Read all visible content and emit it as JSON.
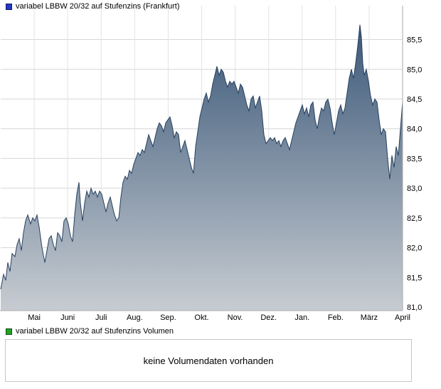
{
  "price_chart": {
    "legend_label": "variabel LBBW 20/32 auf Stufenzins (Frankfurt)",
    "marker_color": "#2337c8"
  },
  "volume_section": {
    "legend_label": "variabel LBBW 20/32 auf Stufenzins Volumen",
    "marker_color": "#23a123",
    "message": "keine Volumendaten vorhanden"
  },
  "chart_data": {
    "type": "area",
    "title": "variabel LBBW 20/32 auf Stufenzins (Frankfurt)",
    "xlabel": "",
    "ylabel": "",
    "grid": true,
    "legend_position": "top-left",
    "x_tick_labels": [
      "Mai",
      "Juni",
      "Juli",
      "Aug.",
      "Sep.",
      "Okt.",
      "Nov.",
      "Dez.",
      "Jan.",
      "Feb.",
      "März",
      "April"
    ],
    "y_ticks": [
      {
        "value": 81.0,
        "label": "81,0"
      },
      {
        "value": 81.5,
        "label": "81,5"
      },
      {
        "value": 82.0,
        "label": "82,0"
      },
      {
        "value": 82.5,
        "label": "82,5"
      },
      {
        "value": 83.0,
        "label": "83,0"
      },
      {
        "value": 83.5,
        "label": "83,5"
      },
      {
        "value": 84.0,
        "label": "84,0"
      },
      {
        "value": 84.5,
        "label": "84,5"
      },
      {
        "value": 85.0,
        "label": "85,0"
      },
      {
        "value": 85.5,
        "label": "85,5"
      }
    ],
    "y_range": [
      80.94,
      86.07
    ],
    "x_domain": [
      0,
      565
    ],
    "colors": {
      "line": "#27405e",
      "fill_top": "#3b5878",
      "fill_bottom": "#c7ccd2",
      "grid": "#d6d6d6",
      "grid_vertical": "#e3e3e3",
      "axis": "#aaaaaa"
    },
    "series": [
      {
        "name": "variabel LBBW 20/32 auf Stufenzins",
        "points": [
          [
            0,
            81.3
          ],
          [
            4,
            81.55
          ],
          [
            7,
            81.45
          ],
          [
            10,
            81.75
          ],
          [
            13,
            81.6
          ],
          [
            16,
            81.9
          ],
          [
            20,
            81.85
          ],
          [
            23,
            82.05
          ],
          [
            26,
            82.15
          ],
          [
            29,
            81.95
          ],
          [
            32,
            82.25
          ],
          [
            35,
            82.45
          ],
          [
            38,
            82.55
          ],
          [
            42,
            82.4
          ],
          [
            45,
            82.5
          ],
          [
            48,
            82.45
          ],
          [
            51,
            82.55
          ],
          [
            54,
            82.35
          ],
          [
            58,
            82.0
          ],
          [
            62,
            81.75
          ],
          [
            65,
            81.95
          ],
          [
            68,
            82.15
          ],
          [
            71,
            82.2
          ],
          [
            74,
            82.05
          ],
          [
            77,
            81.95
          ],
          [
            80,
            82.25
          ],
          [
            83,
            82.2
          ],
          [
            86,
            82.1
          ],
          [
            89,
            82.45
          ],
          [
            92,
            82.5
          ],
          [
            95,
            82.4
          ],
          [
            98,
            82.2
          ],
          [
            101,
            82.1
          ],
          [
            104,
            82.55
          ],
          [
            107,
            82.9
          ],
          [
            110,
            83.1
          ],
          [
            112,
            82.75
          ],
          [
            115,
            82.45
          ],
          [
            118,
            82.75
          ],
          [
            121,
            82.95
          ],
          [
            124,
            82.85
          ],
          [
            127,
            83.0
          ],
          [
            130,
            82.9
          ],
          [
            133,
            82.95
          ],
          [
            136,
            82.85
          ],
          [
            139,
            82.95
          ],
          [
            142,
            82.9
          ],
          [
            145,
            82.75
          ],
          [
            148,
            82.6
          ],
          [
            151,
            82.75
          ],
          [
            154,
            82.85
          ],
          [
            157,
            82.7
          ],
          [
            160,
            82.55
          ],
          [
            163,
            82.45
          ],
          [
            166,
            82.5
          ],
          [
            169,
            82.85
          ],
          [
            172,
            83.1
          ],
          [
            175,
            83.2
          ],
          [
            178,
            83.15
          ],
          [
            181,
            83.3
          ],
          [
            184,
            83.25
          ],
          [
            187,
            83.4
          ],
          [
            190,
            83.5
          ],
          [
            193,
            83.6
          ],
          [
            196,
            83.55
          ],
          [
            199,
            83.65
          ],
          [
            202,
            83.6
          ],
          [
            205,
            83.75
          ],
          [
            208,
            83.9
          ],
          [
            211,
            83.8
          ],
          [
            214,
            83.7
          ],
          [
            217,
            83.85
          ],
          [
            220,
            84.0
          ],
          [
            223,
            84.1
          ],
          [
            226,
            84.05
          ],
          [
            229,
            83.95
          ],
          [
            232,
            84.1
          ],
          [
            235,
            84.15
          ],
          [
            238,
            84.2
          ],
          [
            241,
            84.05
          ],
          [
            244,
            83.85
          ],
          [
            247,
            83.95
          ],
          [
            250,
            83.9
          ],
          [
            253,
            83.6
          ],
          [
            256,
            83.7
          ],
          [
            259,
            83.8
          ],
          [
            262,
            83.65
          ],
          [
            265,
            83.5
          ],
          [
            268,
            83.35
          ],
          [
            271,
            83.25
          ],
          [
            274,
            83.7
          ],
          [
            277,
            83.95
          ],
          [
            280,
            84.2
          ],
          [
            283,
            84.35
          ],
          [
            286,
            84.5
          ],
          [
            289,
            84.6
          ],
          [
            292,
            84.45
          ],
          [
            295,
            84.55
          ],
          [
            298,
            84.75
          ],
          [
            301,
            84.9
          ],
          [
            304,
            85.05
          ],
          [
            307,
            84.9
          ],
          [
            310,
            85.0
          ],
          [
            313,
            84.95
          ],
          [
            316,
            84.8
          ],
          [
            319,
            84.7
          ],
          [
            322,
            84.8
          ],
          [
            325,
            84.75
          ],
          [
            328,
            84.8
          ],
          [
            331,
            84.7
          ],
          [
            334,
            84.6
          ],
          [
            337,
            84.75
          ],
          [
            340,
            84.7
          ],
          [
            343,
            84.55
          ],
          [
            346,
            84.4
          ],
          [
            349,
            84.3
          ],
          [
            352,
            84.5
          ],
          [
            355,
            84.55
          ],
          [
            358,
            84.35
          ],
          [
            361,
            84.45
          ],
          [
            364,
            84.55
          ],
          [
            367,
            84.3
          ],
          [
            370,
            83.9
          ],
          [
            373,
            83.75
          ],
          [
            376,
            83.8
          ],
          [
            379,
            83.85
          ],
          [
            382,
            83.8
          ],
          [
            385,
            83.85
          ],
          [
            388,
            83.75
          ],
          [
            391,
            83.8
          ],
          [
            394,
            83.7
          ],
          [
            397,
            83.8
          ],
          [
            400,
            83.85
          ],
          [
            403,
            83.75
          ],
          [
            406,
            83.65
          ],
          [
            409,
            83.8
          ],
          [
            412,
            83.95
          ],
          [
            415,
            84.1
          ],
          [
            418,
            84.2
          ],
          [
            421,
            84.3
          ],
          [
            424,
            84.4
          ],
          [
            427,
            84.25
          ],
          [
            430,
            84.35
          ],
          [
            433,
            84.2
          ],
          [
            436,
            84.4
          ],
          [
            439,
            84.45
          ],
          [
            442,
            84.15
          ],
          [
            445,
            84.0
          ],
          [
            448,
            84.2
          ],
          [
            451,
            84.35
          ],
          [
            454,
            84.3
          ],
          [
            457,
            84.45
          ],
          [
            460,
            84.5
          ],
          [
            463,
            84.35
          ],
          [
            466,
            84.1
          ],
          [
            469,
            83.9
          ],
          [
            472,
            84.1
          ],
          [
            475,
            84.3
          ],
          [
            478,
            84.4
          ],
          [
            481,
            84.25
          ],
          [
            484,
            84.35
          ],
          [
            487,
            84.6
          ],
          [
            490,
            84.85
          ],
          [
            493,
            85.0
          ],
          [
            496,
            84.85
          ],
          [
            499,
            85.1
          ],
          [
            502,
            85.4
          ],
          [
            505,
            85.75
          ],
          [
            507,
            85.55
          ],
          [
            509,
            85.1
          ],
          [
            511,
            84.9
          ],
          [
            514,
            85.0
          ],
          [
            517,
            84.8
          ],
          [
            520,
            84.55
          ],
          [
            523,
            84.4
          ],
          [
            526,
            84.5
          ],
          [
            529,
            84.45
          ],
          [
            532,
            84.15
          ],
          [
            535,
            83.9
          ],
          [
            538,
            84.0
          ],
          [
            541,
            83.95
          ],
          [
            544,
            83.5
          ],
          [
            547,
            83.15
          ],
          [
            550,
            83.55
          ],
          [
            553,
            83.35
          ],
          [
            556,
            83.7
          ],
          [
            559,
            83.55
          ],
          [
            562,
            84.0
          ],
          [
            565,
            84.45
          ]
        ]
      }
    ]
  }
}
